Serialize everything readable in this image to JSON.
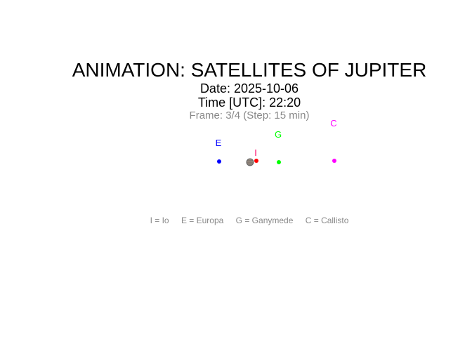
{
  "title": "ANIMATION: SATELLITES OF JUPITER",
  "date_line": "Date: 2025-10-06",
  "time_line": "Time [UTC]: 22:20",
  "frame_line": "Frame: 3/4 (Step: 15 min)",
  "planet": {
    "name": "jupiter-icon"
  },
  "moons": [
    {
      "key": "E",
      "name": "Europa",
      "color": "#0000ff"
    },
    {
      "key": "I",
      "name": "Io",
      "color": "#ff0000",
      "label_color": "#ff0066"
    },
    {
      "key": "G",
      "name": "Ganymede",
      "color": "#00ff00"
    },
    {
      "key": "C",
      "name": "Callisto",
      "color": "#ff00ff"
    }
  ],
  "legend": [
    "I = Io",
    "E = Europa",
    "G = Ganymede",
    "C = Callisto"
  ]
}
